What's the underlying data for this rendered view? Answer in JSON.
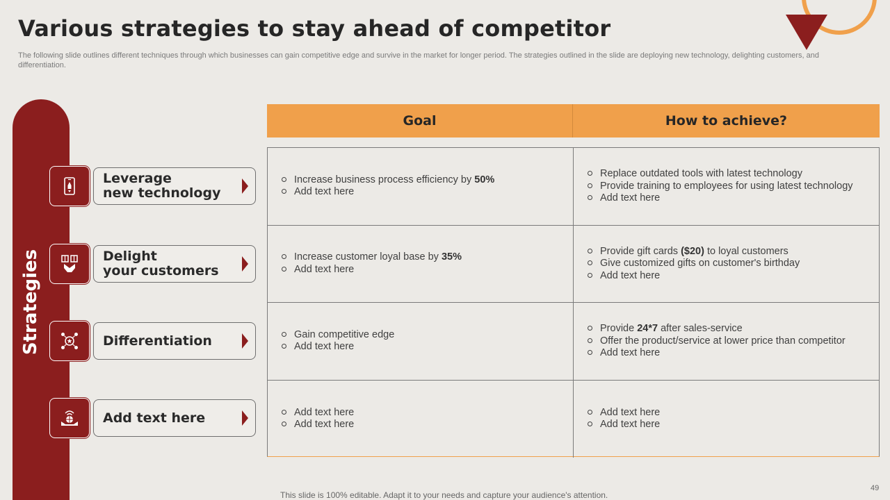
{
  "slide": {
    "title": "Various strategies to stay ahead of competitor",
    "subtitle": "The following slide outlines different techniques through which businesses can gain competitive edge and survive in the market for longer period. The strategies outlined in the slide are deploying new technology, delighting customers, and differentiation.",
    "footer": "This slide is 100% editable. Adapt it to your needs and capture your audience's attention.",
    "page_number": "49"
  },
  "pillar": {
    "label": "Strategies"
  },
  "strategies": [
    {
      "label": "Leverage\nnew technology",
      "icon": "mobile-rocket-icon"
    },
    {
      "label": "Delight\nyour customers",
      "icon": "gift-hand-icon"
    },
    {
      "label": "Differentiation",
      "icon": "star-network-icon"
    },
    {
      "label": "Add text here",
      "icon": "globe-hand-icon"
    }
  ],
  "table": {
    "headers": {
      "goal": "Goal",
      "how": "How to achieve?"
    },
    "rows": [
      {
        "goal": [
          {
            "text": "Increase business process efficiency by ",
            "bold": "50%",
            "after": ""
          },
          {
            "text": "Add text here",
            "bold": "",
            "after": ""
          }
        ],
        "how": [
          {
            "text": "Replace outdated tools with latest technology",
            "bold": "",
            "after": ""
          },
          {
            "text": "Provide training to employees for using latest technology",
            "bold": "",
            "after": ""
          },
          {
            "text": "Add text here",
            "bold": "",
            "after": ""
          }
        ]
      },
      {
        "goal": [
          {
            "text": "Increase customer loyal base by ",
            "bold": "35%",
            "after": ""
          },
          {
            "text": "Add text here",
            "bold": "",
            "after": ""
          }
        ],
        "how": [
          {
            "text": "Provide gift cards ",
            "bold": "($20)",
            "after": " to loyal customers"
          },
          {
            "text": "Give customized gifts on customer's birthday",
            "bold": "",
            "after": ""
          },
          {
            "text": "Add text here",
            "bold": "",
            "after": ""
          }
        ]
      },
      {
        "goal": [
          {
            "text": "Gain competitive edge",
            "bold": "",
            "after": ""
          },
          {
            "text": "Add text here",
            "bold": "",
            "after": ""
          }
        ],
        "how": [
          {
            "text": "Provide ",
            "bold": "24*7",
            "after": " after sales-service"
          },
          {
            "text": "Offer the product/service at lower price than competitor",
            "bold": "",
            "after": ""
          },
          {
            "text": "Add text here",
            "bold": "",
            "after": ""
          }
        ]
      },
      {
        "goal": [
          {
            "text": "Add text here",
            "bold": "",
            "after": ""
          },
          {
            "text": "Add text here",
            "bold": "",
            "after": ""
          }
        ],
        "how": [
          {
            "text": "Add text here",
            "bold": "",
            "after": ""
          },
          {
            "text": "Add text here",
            "bold": "",
            "after": ""
          }
        ]
      }
    ]
  },
  "colors": {
    "accent_dark": "#8B1E1E",
    "accent_orange": "#F0A04B",
    "background": "#ECEAE6"
  }
}
